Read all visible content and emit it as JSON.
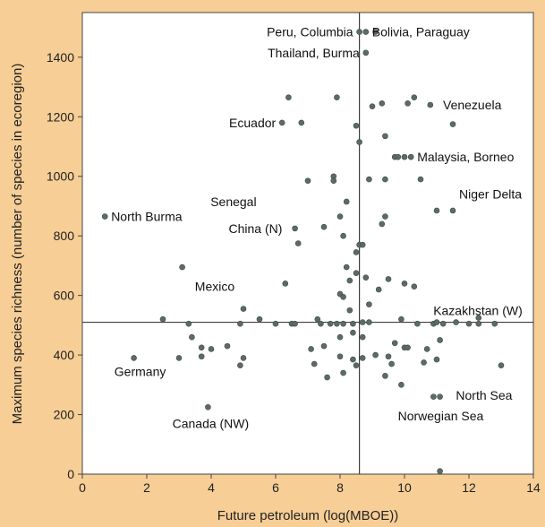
{
  "chart_data": {
    "type": "scatter",
    "title": "",
    "xlabel": "Future petroleum (log(MBOE))",
    "ylabel": "Maximum species richness (number of species in ecoregion)",
    "xlim": [
      0,
      14
    ],
    "ylim": [
      0,
      1550
    ],
    "x_ticks": [
      0,
      2,
      4,
      6,
      8,
      10,
      12,
      14
    ],
    "y_ticks": [
      0,
      200,
      400,
      600,
      800,
      1000,
      1200,
      1400
    ],
    "grid": false,
    "reference_lines": {
      "x": 8.6,
      "y": 510
    },
    "colors": {
      "background": "#f6ce96",
      "plot_area": "#ffffff",
      "points": "#5d6b67",
      "lines": "#3f3f3f"
    },
    "points": [
      [
        0.7,
        865
      ],
      [
        1.6,
        390
      ],
      [
        2.5,
        520
      ],
      [
        3.0,
        390
      ],
      [
        3.1,
        695
      ],
      [
        3.3,
        505
      ],
      [
        3.4,
        460
      ],
      [
        3.7,
        395
      ],
      [
        3.7,
        425
      ],
      [
        3.9,
        225
      ],
      [
        4.9,
        505
      ],
      [
        4.0,
        420
      ],
      [
        4.5,
        430
      ],
      [
        5.0,
        555
      ],
      [
        4.9,
        365
      ],
      [
        5.0,
        390
      ],
      [
        5.5,
        520
      ],
      [
        6.0,
        505
      ],
      [
        6.2,
        1180
      ],
      [
        6.4,
        1265
      ],
      [
        6.3,
        640
      ],
      [
        6.5,
        505
      ],
      [
        6.6,
        825
      ],
      [
        6.7,
        775
      ],
      [
        6.8,
        1180
      ],
      [
        7.0,
        985
      ],
      [
        7.1,
        420
      ],
      [
        7.2,
        370
      ],
      [
        7.3,
        520
      ],
      [
        7.4,
        505
      ],
      [
        7.5,
        830
      ],
      [
        7.5,
        430
      ],
      [
        7.6,
        325
      ],
      [
        7.7,
        505
      ],
      [
        7.8,
        1000
      ],
      [
        7.8,
        985
      ],
      [
        7.9,
        1265
      ],
      [
        7.9,
        505
      ],
      [
        8.0,
        460
      ],
      [
        8.0,
        395
      ],
      [
        8.1,
        340
      ],
      [
        8.0,
        865
      ],
      [
        8.2,
        915
      ],
      [
        8.1,
        800
      ],
      [
        8.2,
        695
      ],
      [
        8.0,
        605
      ],
      [
        8.1,
        595
      ],
      [
        8.3,
        650
      ],
      [
        8.3,
        550
      ],
      [
        8.4,
        505
      ],
      [
        8.4,
        475
      ],
      [
        8.5,
        365
      ],
      [
        8.5,
        745
      ],
      [
        8.5,
        675
      ],
      [
        8.5,
        1170
      ],
      [
        8.6,
        1115
      ],
      [
        8.6,
        1485
      ],
      [
        8.6,
        770
      ],
      [
        8.7,
        770
      ],
      [
        8.7,
        510
      ],
      [
        8.7,
        460
      ],
      [
        8.7,
        390
      ],
      [
        8.8,
        1485
      ],
      [
        8.8,
        1415
      ],
      [
        8.8,
        660
      ],
      [
        8.9,
        570
      ],
      [
        8.9,
        990
      ],
      [
        9.0,
        1235
      ],
      [
        9.1,
        400
      ],
      [
        9.1,
        1485
      ],
      [
        9.3,
        1245
      ],
      [
        9.4,
        1135
      ],
      [
        9.2,
        620
      ],
      [
        9.3,
        840
      ],
      [
        9.4,
        990
      ],
      [
        9.4,
        865
      ],
      [
        9.5,
        655
      ],
      [
        9.4,
        330
      ],
      [
        9.6,
        370
      ],
      [
        9.5,
        395
      ],
      [
        9.7,
        1065
      ],
      [
        9.8,
        1065
      ],
      [
        9.9,
        300
      ],
      [
        9.9,
        520
      ],
      [
        10.0,
        1065
      ],
      [
        10.0,
        425
      ],
      [
        10.0,
        640
      ],
      [
        10.1,
        1245
      ],
      [
        10.2,
        1065
      ],
      [
        10.3,
        1265
      ],
      [
        10.3,
        630
      ],
      [
        10.4,
        505
      ],
      [
        10.5,
        990
      ],
      [
        10.6,
        375
      ],
      [
        10.7,
        420
      ],
      [
        10.8,
        1240
      ],
      [
        10.9,
        505
      ],
      [
        10.9,
        260
      ],
      [
        11.0,
        885
      ],
      [
        11.0,
        510
      ],
      [
        11.1,
        450
      ],
      [
        11.1,
        260
      ],
      [
        11.1,
        10
      ],
      [
        11.2,
        505
      ],
      [
        11.5,
        1175
      ],
      [
        11.5,
        885
      ],
      [
        11.6,
        510
      ],
      [
        12.0,
        505
      ],
      [
        12.3,
        525
      ],
      [
        12.3,
        505
      ],
      [
        12.8,
        505
      ],
      [
        13.0,
        365
      ],
      [
        11.0,
        385
      ],
      [
        10.1,
        425
      ],
      [
        8.4,
        385
      ],
      [
        9.7,
        440
      ],
      [
        8.9,
        510
      ],
      [
        6.6,
        505
      ],
      [
        8.1,
        505
      ]
    ],
    "annotations": [
      {
        "text": "Peru, Columbia",
        "x": 8.6,
        "y": 1485,
        "anchor": "end"
      },
      {
        "text": "Bolivia, Paraguay",
        "x": 8.8,
        "y": 1485,
        "anchor": "start"
      },
      {
        "text": "Thailand, Burma",
        "x": 8.8,
        "y": 1415,
        "anchor": "end"
      },
      {
        "text": "Venezuela",
        "x": 11.0,
        "y": 1240,
        "anchor": "start"
      },
      {
        "text": "Ecuador",
        "x": 6.2,
        "y": 1180,
        "anchor": "end"
      },
      {
        "text": "Malaysia, Borneo",
        "x": 10.2,
        "y": 1065,
        "anchor": "start"
      },
      {
        "text": "Niger Delta",
        "x": 11.5,
        "y": 940,
        "anchor": "start"
      },
      {
        "text": "Senegal",
        "x": 5.6,
        "y": 915,
        "anchor": "end"
      },
      {
        "text": "North Burma",
        "x": 0.7,
        "y": 865,
        "anchor": "start"
      },
      {
        "text": "China (N)",
        "x": 6.4,
        "y": 825,
        "anchor": "end"
      },
      {
        "text": "Mexico",
        "x": 3.3,
        "y": 630,
        "anchor": "start"
      },
      {
        "text": "Kazakhstan (W)",
        "x": 10.7,
        "y": 550,
        "anchor": "start"
      },
      {
        "text": "Germany",
        "x": 0.8,
        "y": 345,
        "anchor": "start"
      },
      {
        "text": "North Sea",
        "x": 11.4,
        "y": 265,
        "anchor": "start"
      },
      {
        "text": "Norwegian Sea",
        "x": 9.6,
        "y": 195,
        "anchor": "start"
      },
      {
        "text": "Canada (NW)",
        "x": 2.6,
        "y": 170,
        "anchor": "start"
      }
    ]
  }
}
